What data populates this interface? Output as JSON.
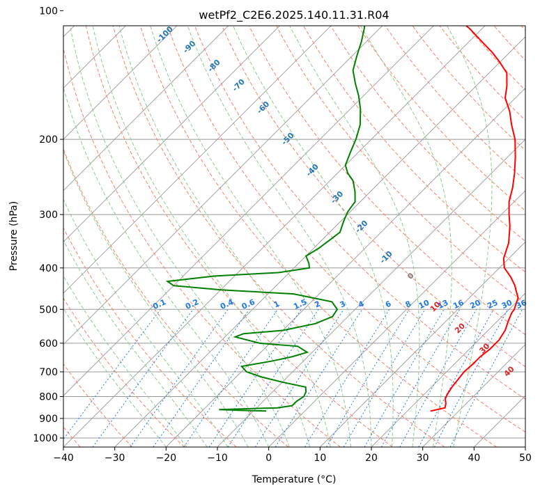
{
  "chart_data": {
    "type": "line",
    "title": "wetPf2_C2E6.2025.140.11.31.R04",
    "xlabel": "Temperature (°C)",
    "ylabel": "Pressure (hPa)",
    "xlim": [
      -40,
      50
    ],
    "ylim": [
      1050,
      100
    ],
    "y_scale": "log",
    "grid": true,
    "x_ticks": [
      "−40",
      "−30",
      "−20",
      "−10",
      "0",
      "10",
      "20",
      "30",
      "40",
      "50"
    ],
    "y_ticks": [
      "100",
      "200",
      "300",
      "400",
      "500",
      "600",
      "700",
      "800",
      "900",
      "1000"
    ],
    "dry_adiabat_labels": [
      "-100",
      "-90",
      "-80",
      "-70",
      "-60",
      "-50",
      "-40",
      "-30",
      "-20",
      "-10",
      "0",
      "10",
      "20",
      "30",
      "40"
    ],
    "mixing_ratio_labels": [
      "0.1",
      "0.2",
      "0.4",
      "0.6",
      "1",
      "1.5",
      "2",
      "3",
      "4",
      "6",
      "8",
      "10",
      "13",
      "16",
      "20",
      "25",
      "30",
      "36"
    ],
    "colors": {
      "temperature": "#ff0000",
      "dewpoint": "#008000",
      "isotherm": "#999999",
      "dry_adiabat": "#fa8063",
      "moist_adiabat": "#8fc98f",
      "mixing_ratio": "#1e78e6",
      "dry_label_cold": "#1f77b4",
      "dry_label_warm": "#d62728",
      "dry_label_zero": "#7f7f7f",
      "extra_curve": "#d2b48c"
    },
    "series": [
      {
        "kind": "temperature",
        "points": [
          [
            24.5,
            865
          ],
          [
            26.7,
            850
          ],
          [
            26.0,
            830
          ],
          [
            25.0,
            810
          ],
          [
            24.5,
            790
          ],
          [
            24.0,
            760
          ],
          [
            23.7,
            730
          ],
          [
            23.4,
            700
          ],
          [
            23.6,
            670
          ],
          [
            23.6,
            645
          ],
          [
            24.0,
            620
          ],
          [
            24.0,
            590
          ],
          [
            23.3,
            560
          ],
          [
            22.0,
            530
          ],
          [
            21.2,
            510
          ],
          [
            21.0,
            500
          ],
          [
            20.0,
            480
          ],
          [
            19.5,
            470
          ],
          [
            17.5,
            450
          ],
          [
            16.5,
            440
          ],
          [
            14.0,
            420
          ],
          [
            11.0,
            400
          ],
          [
            9.0,
            380
          ],
          [
            7.0,
            350
          ],
          [
            4.0,
            320
          ],
          [
            1.5,
            300
          ],
          [
            -1.0,
            280
          ],
          [
            -3.0,
            260
          ],
          [
            -5.5,
            240
          ],
          [
            -8.5,
            220
          ],
          [
            -12.0,
            200
          ],
          [
            -15.5,
            185
          ],
          [
            -18.5,
            172
          ],
          [
            -22.0,
            160
          ],
          [
            -24.0,
            150
          ],
          [
            -26.5,
            140
          ],
          [
            -30.0,
            132
          ],
          [
            -33.5,
            125
          ],
          [
            -37.0,
            119
          ],
          [
            -40.0,
            114
          ],
          [
            -42.5,
            110
          ],
          [
            -45.5,
            106
          ],
          [
            -48.0,
            103
          ],
          [
            -50.5,
            100
          ]
        ]
      },
      {
        "kind": "dewpoint",
        "points": [
          [
            -7.5,
            865
          ],
          [
            -12.5,
            862
          ],
          [
            -17.0,
            858
          ],
          [
            -6.0,
            850
          ],
          [
            -3.5,
            840
          ],
          [
            -3.5,
            820
          ],
          [
            -3.0,
            800
          ],
          [
            -3.5,
            780
          ],
          [
            -4.5,
            760
          ],
          [
            -10.0,
            740
          ],
          [
            -15.0,
            720
          ],
          [
            -19.0,
            700
          ],
          [
            -21.0,
            680
          ],
          [
            -16.0,
            660
          ],
          [
            -13.0,
            645
          ],
          [
            -11.0,
            630
          ],
          [
            -14.0,
            610
          ],
          [
            -22.0,
            600
          ],
          [
            -28.0,
            580
          ],
          [
            -27.0,
            570
          ],
          [
            -20.0,
            560
          ],
          [
            -15.0,
            540
          ],
          [
            -13.0,
            520
          ],
          [
            -13.5,
            500
          ],
          [
            -16.0,
            480
          ],
          [
            -25.0,
            460
          ],
          [
            -40.0,
            450
          ],
          [
            -50.0,
            440
          ],
          [
            -52.0,
            430
          ],
          [
            -44.0,
            418
          ],
          [
            -32.0,
            410
          ],
          [
            -27.0,
            400
          ],
          [
            -28.0,
            390
          ],
          [
            -30.0,
            375
          ],
          [
            -29.0,
            360
          ],
          [
            -28.5,
            345
          ],
          [
            -28.0,
            330
          ],
          [
            -29.5,
            310
          ],
          [
            -30.5,
            295
          ],
          [
            -31.0,
            280
          ],
          [
            -33.0,
            265
          ],
          [
            -35.5,
            250
          ],
          [
            -38.0,
            240
          ],
          [
            -40.0,
            230
          ],
          [
            -41.5,
            215
          ],
          [
            -43.0,
            200
          ],
          [
            -45.0,
            185
          ],
          [
            -48.0,
            170
          ],
          [
            -51.0,
            158
          ],
          [
            -54.0,
            148
          ],
          [
            -57.0,
            138
          ],
          [
            -59.0,
            128
          ],
          [
            -61.0,
            118
          ],
          [
            -63.0,
            110
          ],
          [
            -64.5,
            105
          ],
          [
            -66.0,
            100
          ]
        ]
      }
    ]
  }
}
